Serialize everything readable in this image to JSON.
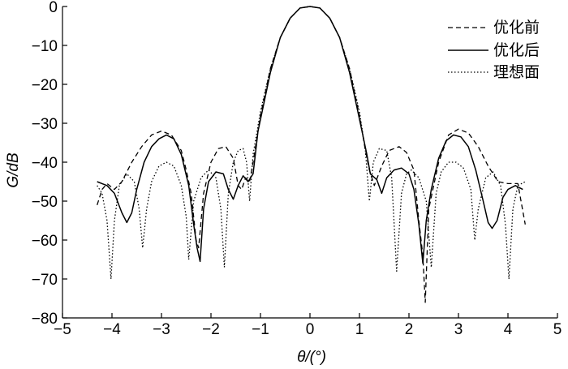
{
  "chart_data": {
    "type": "line",
    "xlabel": "θ/(°)",
    "ylabel": "G/dB",
    "xlim": [
      -5,
      5
    ],
    "ylim": [
      -80,
      0
    ],
    "x_ticks": [
      -5,
      -4,
      -3,
      -2,
      -1,
      0,
      1,
      2,
      3,
      4,
      5
    ],
    "y_ticks": [
      0,
      -10,
      -20,
      -30,
      -40,
      -50,
      -60,
      -70,
      -80
    ],
    "x_tick_labels": [
      "−5",
      "−4",
      "−3",
      "−2",
      "−1",
      "0",
      "1",
      "2",
      "3",
      "4",
      "5"
    ],
    "y_tick_labels": [
      "0",
      "−10",
      "−20",
      "−30",
      "−40",
      "−50",
      "−60",
      "−70",
      "−80"
    ],
    "legend_position": "top-right",
    "grid": false,
    "series": [
      {
        "name": "优化前",
        "style": "dashed",
        "points": [
          [
            -4.3,
            -51
          ],
          [
            -4.2,
            -47
          ],
          [
            -4.1,
            -45.5
          ],
          [
            -3.95,
            -47
          ],
          [
            -3.8,
            -45
          ],
          [
            -3.6,
            -40
          ],
          [
            -3.4,
            -36
          ],
          [
            -3.2,
            -33
          ],
          [
            -3.0,
            -32
          ],
          [
            -2.8,
            -33
          ],
          [
            -2.6,
            -37
          ],
          [
            -2.5,
            -42
          ],
          [
            -2.4,
            -48
          ],
          [
            -2.3,
            -60
          ],
          [
            -2.25,
            -62
          ],
          [
            -2.15,
            -48
          ],
          [
            -2.0,
            -40
          ],
          [
            -1.85,
            -36.5
          ],
          [
            -1.7,
            -36
          ],
          [
            -1.55,
            -39
          ],
          [
            -1.45,
            -46
          ],
          [
            -1.38,
            -47
          ],
          [
            -1.3,
            -44
          ],
          [
            -1.22,
            -45
          ],
          [
            -1.15,
            -40
          ],
          [
            -1.0,
            -28
          ],
          [
            -0.8,
            -16
          ],
          [
            -0.6,
            -8
          ],
          [
            -0.4,
            -3
          ],
          [
            -0.2,
            -0.4
          ],
          [
            0,
            0
          ],
          [
            0.2,
            -0.4
          ],
          [
            0.4,
            -3
          ],
          [
            0.6,
            -8
          ],
          [
            0.8,
            -16
          ],
          [
            1.0,
            -28
          ],
          [
            1.12,
            -37
          ],
          [
            1.2,
            -42
          ],
          [
            1.3,
            -46
          ],
          [
            1.45,
            -41
          ],
          [
            1.6,
            -37
          ],
          [
            1.8,
            -36
          ],
          [
            1.95,
            -37.5
          ],
          [
            2.1,
            -42
          ],
          [
            2.2,
            -55
          ],
          [
            2.28,
            -64
          ],
          [
            2.33,
            -76
          ],
          [
            2.4,
            -52
          ],
          [
            2.6,
            -40
          ],
          [
            2.8,
            -33
          ],
          [
            3.0,
            -31.5
          ],
          [
            3.2,
            -32.5
          ],
          [
            3.4,
            -36
          ],
          [
            3.6,
            -41
          ],
          [
            3.8,
            -45
          ],
          [
            4.0,
            -45.5
          ],
          [
            4.2,
            -45.5
          ],
          [
            4.35,
            -56
          ]
        ]
      },
      {
        "name": "优化后",
        "style": "solid",
        "points": [
          [
            -4.3,
            -45
          ],
          [
            -4.1,
            -46
          ],
          [
            -3.95,
            -48
          ],
          [
            -3.8,
            -53
          ],
          [
            -3.7,
            -55.5
          ],
          [
            -3.6,
            -53
          ],
          [
            -3.5,
            -47
          ],
          [
            -3.35,
            -40
          ],
          [
            -3.2,
            -36
          ],
          [
            -3.05,
            -34
          ],
          [
            -2.9,
            -33
          ],
          [
            -2.75,
            -34
          ],
          [
            -2.6,
            -38
          ],
          [
            -2.45,
            -46
          ],
          [
            -2.35,
            -56
          ],
          [
            -2.28,
            -62
          ],
          [
            -2.22,
            -65.5
          ],
          [
            -2.15,
            -52
          ],
          [
            -2.05,
            -45
          ],
          [
            -1.9,
            -42.5
          ],
          [
            -1.75,
            -43
          ],
          [
            -1.65,
            -47
          ],
          [
            -1.55,
            -49.5
          ],
          [
            -1.45,
            -46
          ],
          [
            -1.35,
            -43.5
          ],
          [
            -1.25,
            -45
          ],
          [
            -1.15,
            -43
          ],
          [
            -1.05,
            -32
          ],
          [
            -0.8,
            -17
          ],
          [
            -0.6,
            -8
          ],
          [
            -0.4,
            -3
          ],
          [
            -0.2,
            -0.4
          ],
          [
            0,
            0
          ],
          [
            0.2,
            -0.4
          ],
          [
            0.4,
            -3
          ],
          [
            0.6,
            -8
          ],
          [
            0.8,
            -17
          ],
          [
            1.05,
            -32
          ],
          [
            1.15,
            -38
          ],
          [
            1.22,
            -43
          ],
          [
            1.35,
            -44.5
          ],
          [
            1.45,
            -48
          ],
          [
            1.55,
            -44
          ],
          [
            1.7,
            -42
          ],
          [
            1.85,
            -41.5
          ],
          [
            2.0,
            -43
          ],
          [
            2.1,
            -47
          ],
          [
            2.2,
            -56
          ],
          [
            2.28,
            -66
          ],
          [
            2.35,
            -55
          ],
          [
            2.45,
            -47
          ],
          [
            2.6,
            -39
          ],
          [
            2.75,
            -34.5
          ],
          [
            2.9,
            -33
          ],
          [
            3.05,
            -33.5
          ],
          [
            3.2,
            -36
          ],
          [
            3.35,
            -42
          ],
          [
            3.5,
            -50
          ],
          [
            3.6,
            -55.5
          ],
          [
            3.68,
            -57
          ],
          [
            3.78,
            -55
          ],
          [
            3.9,
            -49
          ],
          [
            4.0,
            -47
          ],
          [
            4.15,
            -46
          ],
          [
            4.3,
            -47
          ]
        ]
      },
      {
        "name": "理想面",
        "style": "dotted",
        "points": [
          [
            -4.3,
            -46
          ],
          [
            -4.2,
            -48
          ],
          [
            -4.1,
            -55
          ],
          [
            -4.02,
            -70
          ],
          [
            -3.95,
            -55
          ],
          [
            -3.85,
            -46
          ],
          [
            -3.7,
            -43
          ],
          [
            -3.55,
            -45
          ],
          [
            -3.45,
            -52
          ],
          [
            -3.38,
            -62
          ],
          [
            -3.3,
            -52
          ],
          [
            -3.2,
            -45
          ],
          [
            -3.05,
            -41
          ],
          [
            -2.9,
            -40
          ],
          [
            -2.75,
            -41
          ],
          [
            -2.6,
            -46
          ],
          [
            -2.5,
            -54
          ],
          [
            -2.45,
            -65
          ],
          [
            -2.35,
            -50
          ],
          [
            -2.2,
            -44
          ],
          [
            -2.05,
            -42
          ],
          [
            -1.9,
            -44
          ],
          [
            -1.8,
            -52
          ],
          [
            -1.73,
            -67
          ],
          [
            -1.65,
            -48
          ],
          [
            -1.55,
            -40
          ],
          [
            -1.45,
            -37
          ],
          [
            -1.35,
            -36.5
          ],
          [
            -1.28,
            -40
          ],
          [
            -1.22,
            -50
          ],
          [
            -1.15,
            -38
          ],
          [
            -1.0,
            -27
          ],
          [
            -0.8,
            -16
          ],
          [
            -0.6,
            -8
          ],
          [
            -0.4,
            -3
          ],
          [
            -0.2,
            -0.4
          ],
          [
            0,
            0
          ],
          [
            0.2,
            -0.4
          ],
          [
            0.4,
            -3
          ],
          [
            0.6,
            -8
          ],
          [
            0.8,
            -16
          ],
          [
            1.0,
            -27
          ],
          [
            1.12,
            -37
          ],
          [
            1.2,
            -50
          ],
          [
            1.28,
            -40
          ],
          [
            1.4,
            -36.5
          ],
          [
            1.55,
            -37
          ],
          [
            1.65,
            -44
          ],
          [
            1.75,
            -68
          ],
          [
            1.85,
            -48
          ],
          [
            1.95,
            -43
          ],
          [
            2.05,
            -42
          ],
          [
            2.2,
            -44
          ],
          [
            2.35,
            -50
          ],
          [
            2.45,
            -67
          ],
          [
            2.55,
            -48
          ],
          [
            2.65,
            -42.5
          ],
          [
            2.8,
            -40
          ],
          [
            2.95,
            -40
          ],
          [
            3.1,
            -41.5
          ],
          [
            3.25,
            -47
          ],
          [
            3.33,
            -60
          ],
          [
            3.4,
            -52
          ],
          [
            3.55,
            -44
          ],
          [
            3.7,
            -42.5
          ],
          [
            3.85,
            -46
          ],
          [
            3.95,
            -56
          ],
          [
            4.02,
            -70
          ],
          [
            4.1,
            -52
          ],
          [
            4.2,
            -46
          ],
          [
            4.35,
            -45
          ]
        ]
      }
    ]
  },
  "colors": {
    "line": "#000000",
    "background": "#ffffff"
  }
}
